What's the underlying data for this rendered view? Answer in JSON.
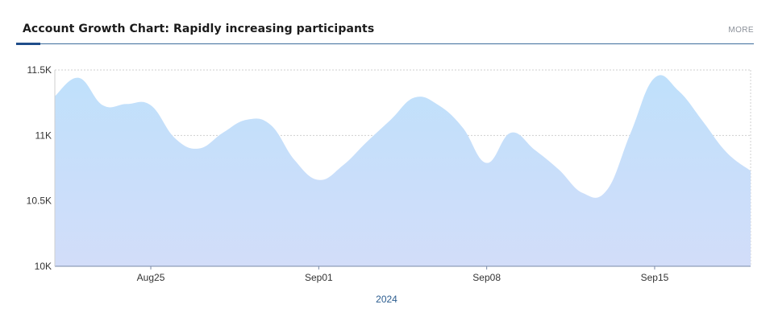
{
  "header": {
    "title": "Account Growth Chart: Rapidly increasing participants",
    "more_label": "MORE"
  },
  "colors": {
    "accent": "#1f4d8a",
    "rule": "#3d6e9c",
    "area_top": "#bfe0fb",
    "area_bottom": "#d2ddf9",
    "grid": "#cfcfcf",
    "axis": "#7a8aa8"
  },
  "chart_data": {
    "type": "area",
    "title": "Account Growth Chart: Rapidly increasing participants",
    "xlabel": "2024",
    "ylabel": "",
    "x_range": [
      "2024-08-21",
      "2024-09-19"
    ],
    "xticks": [
      {
        "date": "2024-08-25",
        "label": "Aug25"
      },
      {
        "date": "2024-09-01",
        "label": "Sep01"
      },
      {
        "date": "2024-09-08",
        "label": "Sep08"
      },
      {
        "date": "2024-09-15",
        "label": "Sep15"
      }
    ],
    "ylim": [
      10000,
      11500
    ],
    "yticks": [
      {
        "value": 10000,
        "label": "10K"
      },
      {
        "value": 10500,
        "label": "10.5K"
      },
      {
        "value": 11000,
        "label": "11K"
      },
      {
        "value": 11500,
        "label": "11.5K"
      }
    ],
    "grid": true,
    "series": [
      {
        "values": [
          {
            "x": "2024-08-21",
            "y": 11300
          },
          {
            "x": "2024-08-22",
            "y": 11440
          },
          {
            "x": "2024-08-23",
            "y": 11230
          },
          {
            "x": "2024-08-24",
            "y": 11240
          },
          {
            "x": "2024-08-25",
            "y": 11230
          },
          {
            "x": "2024-08-26",
            "y": 10980
          },
          {
            "x": "2024-08-27",
            "y": 10900
          },
          {
            "x": "2024-08-28",
            "y": 11020
          },
          {
            "x": "2024-08-29",
            "y": 11120
          },
          {
            "x": "2024-08-30",
            "y": 11080
          },
          {
            "x": "2024-08-31",
            "y": 10810
          },
          {
            "x": "2024-09-01",
            "y": 10660
          },
          {
            "x": "2024-09-02",
            "y": 10770
          },
          {
            "x": "2024-09-03",
            "y": 10950
          },
          {
            "x": "2024-09-04",
            "y": 11120
          },
          {
            "x": "2024-09-05",
            "y": 11290
          },
          {
            "x": "2024-09-06",
            "y": 11230
          },
          {
            "x": "2024-09-07",
            "y": 11060
          },
          {
            "x": "2024-09-08",
            "y": 10790
          },
          {
            "x": "2024-09-09",
            "y": 11020
          },
          {
            "x": "2024-09-10",
            "y": 10890
          },
          {
            "x": "2024-09-11",
            "y": 10740
          },
          {
            "x": "2024-09-12",
            "y": 10560
          },
          {
            "x": "2024-09-13",
            "y": 10580
          },
          {
            "x": "2024-09-14",
            "y": 11020
          },
          {
            "x": "2024-09-15",
            "y": 11440
          },
          {
            "x": "2024-09-16",
            "y": 11340
          },
          {
            "x": "2024-09-17",
            "y": 11110
          },
          {
            "x": "2024-09-18",
            "y": 10870
          },
          {
            "x": "2024-09-19",
            "y": 10730
          }
        ]
      }
    ]
  }
}
